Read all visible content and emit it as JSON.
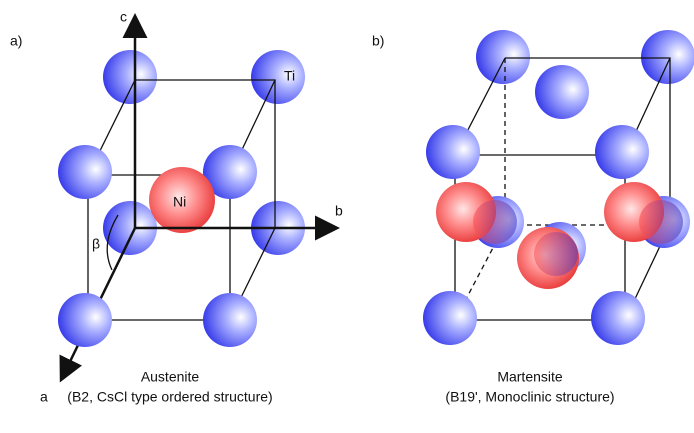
{
  "left": {
    "panel_label": "a)",
    "axis_c": "c",
    "axis_b": "b",
    "axis_a": "a",
    "angle": "β",
    "atom_ti": "Ti",
    "atom_ni": "Ni",
    "caption_title": "Austenite",
    "caption_subtitle": "(B2, CsCl type ordered structure)"
  },
  "right": {
    "panel_label": "b)",
    "caption_title": "Martensite",
    "caption_subtitle": "(B19', Monoclinic structure)"
  }
}
